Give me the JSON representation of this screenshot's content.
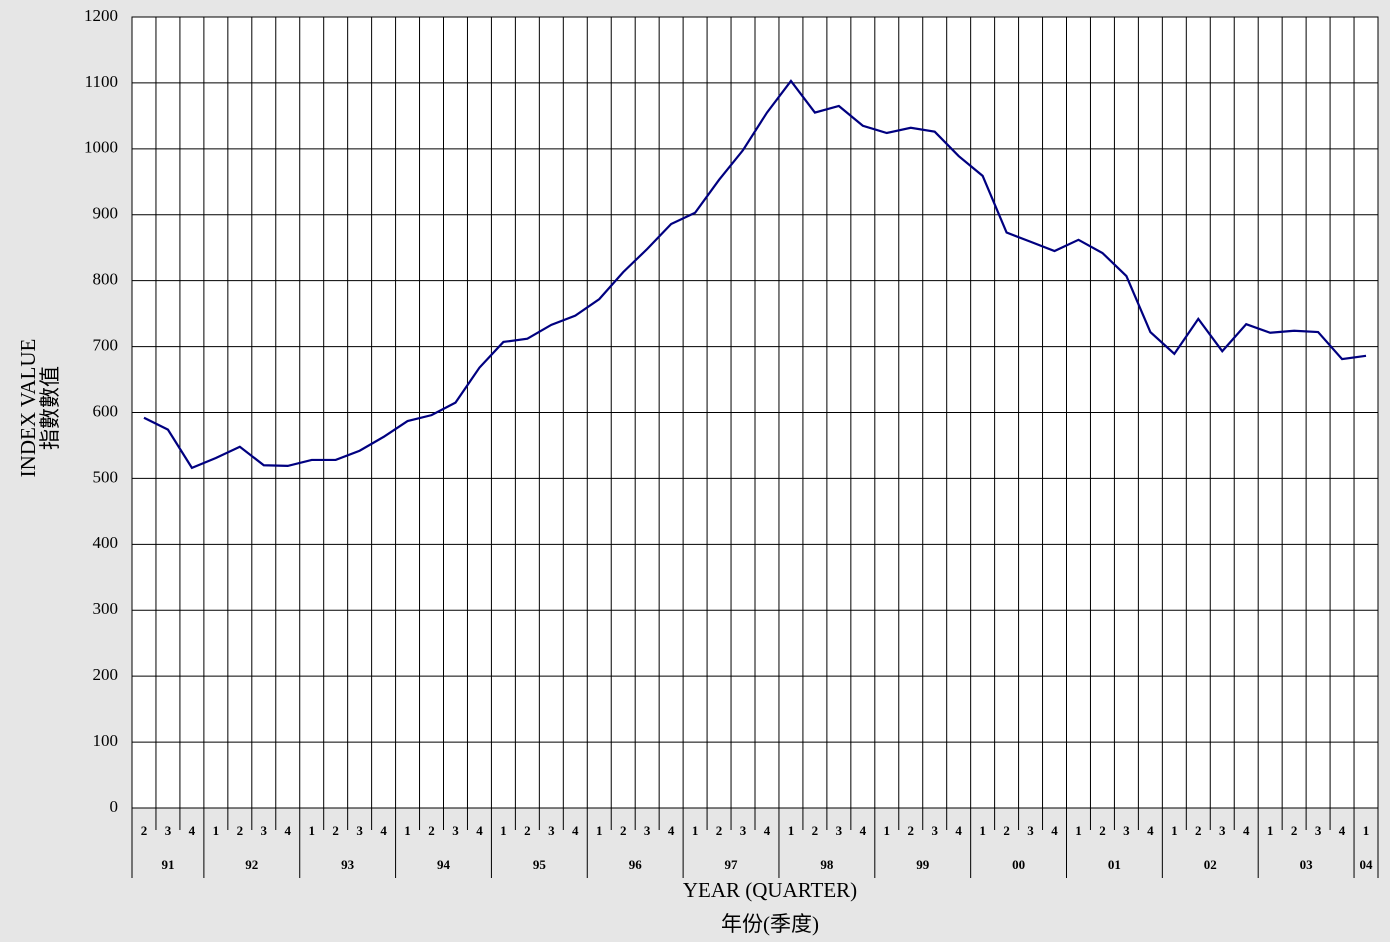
{
  "chart_data": {
    "type": "line",
    "y_label": [
      "INDEX VALUE",
      "指數數值"
    ],
    "x_label": [
      "YEAR (QUARTER)",
      "年份(季度)"
    ],
    "categories": [
      "2",
      "3",
      "4",
      "1",
      "2",
      "3",
      "4",
      "1",
      "2",
      "3",
      "4",
      "1",
      "2",
      "3",
      "4",
      "1",
      "2",
      "3",
      "4",
      "1",
      "2",
      "3",
      "4",
      "1",
      "2",
      "3",
      "4",
      "1",
      "2",
      "3",
      "4",
      "1",
      "2",
      "3",
      "4",
      "1",
      "2",
      "3",
      "4",
      "1",
      "2",
      "3",
      "4",
      "1",
      "2",
      "3",
      "4",
      "1",
      "2",
      "3",
      "4",
      "1"
    ],
    "years": [
      "91",
      "92",
      "93",
      "94",
      "95",
      "96",
      "97",
      "98",
      "99",
      "00",
      "01",
      "02",
      "03",
      "04"
    ],
    "values": [
      592,
      574,
      516,
      531,
      548,
      520,
      519,
      528,
      528,
      542,
      563,
      587,
      596,
      615,
      668,
      707,
      712,
      733,
      747,
      772,
      813,
      848,
      886,
      903,
      953,
      998,
      1055,
      1103,
      1055,
      1065,
      1035,
      1024,
      1032,
      1026,
      989,
      959,
      873,
      859,
      845,
      862,
      842,
      807,
      722,
      689,
      742,
      693,
      734,
      721,
      724,
      722,
      681,
      686
    ],
    "color": "#000080",
    "ylim": [
      0,
      1200
    ],
    "yticks": [
      0,
      100,
      200,
      300,
      400,
      500,
      600,
      700,
      800,
      900,
      1000,
      1100,
      1200
    ],
    "grid": true
  }
}
